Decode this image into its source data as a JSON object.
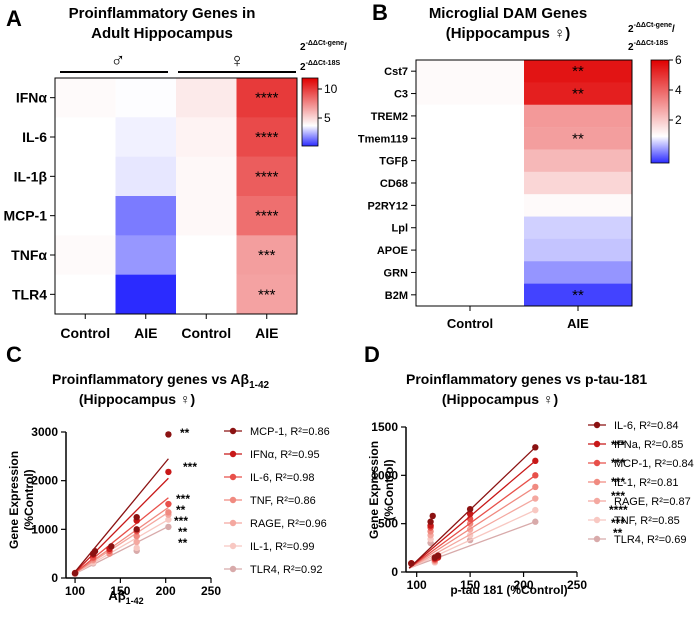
{
  "panels": {
    "A": {
      "letter": "A",
      "title_line1": "Proinflammatory Genes in",
      "title_line2": "Adult Hippocampus",
      "male_symbol": "♂",
      "female_symbol": "♀",
      "columns": [
        "Control",
        "AIE",
        "Control",
        "AIE"
      ],
      "colorbar_label_main": "2",
      "colorbar_label_sup1": "-ΔΔCt-gene",
      "colorbar_label_slash": "/",
      "colorbar_label_sup2": "-ΔΔCt-18S",
      "colorbar_ticks": [
        "10",
        "5"
      ]
    },
    "B": {
      "letter": "B",
      "title_line1": "Microglial DAM Genes",
      "title_line2": "(Hippocampus ♀)",
      "columns": [
        "Control",
        "AIE"
      ],
      "colorbar_label_main": "2",
      "colorbar_label_sup1": "-ΔΔCt-gene",
      "colorbar_label_slash": "/",
      "colorbar_label_sup2": "-ΔΔCt-18S",
      "colorbar_ticks": [
        "6",
        "4",
        "2"
      ]
    },
    "C": {
      "letter": "C",
      "title_line1": "Proinflammatory genes vs Aβ",
      "title_sub": "1-42",
      "title_line2": "(Hippocampus ♀)",
      "ylabel_line1": "Gene Expression",
      "ylabel_line2": "(%Control)",
      "xlabel": "Aβ",
      "xlabel_sub": "1-42"
    },
    "D": {
      "letter": "D",
      "title_line1": "Proinflammatory genes vs p-tau-181",
      "title_line2": "(Hippocampus ♀)",
      "ylabel_line1": "Gene Expression",
      "ylabel_line2": "(%Control)",
      "xlabel": "p-tau 181 (%Control)"
    }
  },
  "chart_data": [
    {
      "panel": "A",
      "type": "heatmap",
      "title": "Proinflammatory Genes in Adult Hippocampus",
      "rows": [
        "IFNα",
        "IL-6",
        "IL-1β",
        "MCP-1",
        "TNFα",
        "TLR4"
      ],
      "columns": [
        "Control ♂",
        "AIE ♂",
        "Control ♀",
        "AIE ♀"
      ],
      "values": [
        [
          1.2,
          0.95,
          1.9,
          9.5
        ],
        [
          1.0,
          0.7,
          1.5,
          8.8
        ],
        [
          1.0,
          0.5,
          1.3,
          8.0
        ],
        [
          1.0,
          -1.8,
          1.3,
          7.2
        ],
        [
          1.2,
          -1.2,
          1.0,
          5.2
        ],
        [
          1.0,
          -3.5,
          1.0,
          5.0
        ]
      ],
      "significance": [
        [
          "",
          "",
          "",
          "****"
        ],
        [
          "",
          "",
          "",
          "****"
        ],
        [
          "",
          "",
          "",
          "****"
        ],
        [
          "",
          "",
          "",
          "****"
        ],
        [
          "",
          "",
          "",
          "***"
        ],
        [
          "",
          "",
          "",
          "***"
        ]
      ],
      "colorbar": {
        "min": -3.5,
        "mid": 1,
        "max": 12,
        "ticks": [
          10,
          5
        ]
      }
    },
    {
      "panel": "B",
      "type": "heatmap",
      "title": "Microglial DAM Genes (Hippocampus ♀)",
      "rows": [
        "Cst7",
        "C3",
        "TREM2",
        "Tmem119",
        "TGFβ",
        "CD68",
        "P2RY12",
        "Lpl",
        "APOE",
        "GRN",
        "B2M"
      ],
      "columns": [
        "Control",
        "AIE"
      ],
      "values": [
        [
          1.1,
          5.6
        ],
        [
          1.1,
          5.4
        ],
        [
          1.0,
          3.0
        ],
        [
          1.0,
          2.9
        ],
        [
          1.0,
          2.4
        ],
        [
          1.0,
          1.8
        ],
        [
          1.0,
          1.1
        ],
        [
          1.0,
          0.6
        ],
        [
          1.0,
          0.5
        ],
        [
          1.0,
          0.1
        ],
        [
          1.0,
          -0.6
        ]
      ],
      "significance": [
        [
          "",
          "**"
        ],
        [
          "",
          "**"
        ],
        [
          "",
          ""
        ],
        [
          "",
          "**"
        ],
        [
          "",
          ""
        ],
        [
          "",
          ""
        ],
        [
          "",
          ""
        ],
        [
          "",
          ""
        ],
        [
          "",
          ""
        ],
        [
          "",
          ""
        ],
        [
          "",
          "**"
        ]
      ],
      "colorbar": {
        "min": -0.8,
        "mid": 1,
        "max": 6,
        "ticks": [
          6,
          4,
          2
        ]
      }
    },
    {
      "panel": "C",
      "type": "scatter",
      "title": "Proinflammatory genes vs Aβ1-42 (Hippocampus ♀)",
      "xlabel": "Aβ1-42",
      "ylabel": "Gene Expression (%Control)",
      "xlim": [
        90,
        250
      ],
      "ylim": [
        0,
        3000
      ],
      "xticks": [
        100,
        150,
        200,
        250
      ],
      "yticks": [
        0,
        1000,
        2000,
        3000
      ],
      "series": [
        {
          "name": "MCP-1, R²=0.86",
          "color": "#8b1212",
          "sig": "**",
          "line": [
            [
              97,
              60
            ],
            [
              203,
              2450
            ]
          ],
          "points": [
            [
              100,
              100
            ],
            [
              120,
              500
            ],
            [
              122,
              550
            ],
            [
              140,
              650
            ],
            [
              168,
              1000
            ],
            [
              168,
              1250
            ],
            [
              203,
              2950
            ]
          ]
        },
        {
          "name": "IFNα, R²=0.95",
          "color": "#c81818",
          "sig": "***",
          "line": [
            [
              97,
              60
            ],
            [
              203,
              2050
            ]
          ],
          "points": [
            [
              100,
              100
            ],
            [
              120,
              480
            ],
            [
              138,
              600
            ],
            [
              168,
              1180
            ],
            [
              203,
              2180
            ]
          ]
        },
        {
          "name": "IL-6, R²=0.98",
          "color": "#e8504a",
          "sig": "***",
          "line": [
            [
              97,
              60
            ],
            [
              203,
              1650
            ]
          ],
          "points": [
            [
              100,
              100
            ],
            [
              120,
              420
            ],
            [
              138,
              560
            ],
            [
              168,
              960
            ],
            [
              203,
              1520
            ]
          ]
        },
        {
          "name": "TNF, R²=0.86",
          "color": "#f08a80",
          "sig": "**",
          "line": [
            [
              97,
              60
            ],
            [
              203,
              1450
            ]
          ],
          "points": [
            [
              100,
              100
            ],
            [
              120,
              380
            ],
            [
              138,
              500
            ],
            [
              168,
              860
            ],
            [
              203,
              1350
            ]
          ]
        },
        {
          "name": "RAGE, R²=0.96",
          "color": "#f4a8a0",
          "sig": "***",
          "line": [
            [
              97,
              60
            ],
            [
              203,
              1350
            ]
          ],
          "points": [
            [
              100,
              100
            ],
            [
              120,
              360
            ],
            [
              168,
              740
            ],
            [
              203,
              1300
            ]
          ]
        },
        {
          "name": "IL-1, R²=0.99",
          "color": "#f8c8c2",
          "sig": "**",
          "line": [
            [
              97,
              60
            ],
            [
              203,
              1200
            ]
          ],
          "points": [
            [
              100,
              90
            ],
            [
              120,
              320
            ],
            [
              168,
              620
            ],
            [
              203,
              1200
            ]
          ]
        },
        {
          "name": "TLR4, R²=0.92",
          "color": "#d8aaaa",
          "sig": "**",
          "line": [
            [
              97,
              60
            ],
            [
              203,
              1060
            ]
          ],
          "points": [
            [
              100,
              80
            ],
            [
              120,
              300
            ],
            [
              168,
              560
            ],
            [
              203,
              1050
            ]
          ]
        }
      ]
    },
    {
      "panel": "D",
      "type": "scatter",
      "title": "Proinflammatory genes vs p-tau-181 (Hippocampus ♀)",
      "xlabel": "p-tau 181 (%Control)",
      "ylabel": "Gene Expression (%Control)",
      "xlim": [
        90,
        250
      ],
      "ylim": [
        0,
        1500
      ],
      "xticks": [
        100,
        150,
        200,
        250
      ],
      "yticks": [
        0,
        500,
        1000,
        1500
      ],
      "series": [
        {
          "name": "IL-6, R²=0.84",
          "color": "#8b1212",
          "sig": "***",
          "line": [
            [
              93,
              40
            ],
            [
              211,
              1290
            ]
          ],
          "points": [
            [
              95,
              90
            ],
            [
              113,
              520
            ],
            [
              115,
              580
            ],
            [
              117,
              150
            ],
            [
              120,
              170
            ],
            [
              150,
              650
            ],
            [
              211,
              1290
            ]
          ]
        },
        {
          "name": "IFNa, R²=0.85",
          "color": "#c81818",
          "sig": "***",
          "line": [
            [
              93,
              40
            ],
            [
              211,
              1150
            ]
          ],
          "points": [
            [
              95,
              90
            ],
            [
              113,
              480
            ],
            [
              117,
              140
            ],
            [
              120,
              150
            ],
            [
              150,
              600
            ],
            [
              211,
              1150
            ]
          ]
        },
        {
          "name": "MCP-1, R²=0.84",
          "color": "#e8504a",
          "sig": "***",
          "line": [
            [
              93,
              40
            ],
            [
              211,
              1000
            ]
          ],
          "points": [
            [
              95,
              90
            ],
            [
              113,
              460
            ],
            [
              117,
              130
            ],
            [
              150,
              550
            ],
            [
              211,
              1000
            ]
          ]
        },
        {
          "name": "IL-1, R²=0.81",
          "color": "#f08a80",
          "sig": "***",
          "line": [
            [
              93,
              40
            ],
            [
              211,
              880
            ]
          ],
          "points": [
            [
              95,
              90
            ],
            [
              113,
              420
            ],
            [
              117,
              120
            ],
            [
              150,
              500
            ],
            [
              211,
              880
            ]
          ]
        },
        {
          "name": "RAGE, R²=0.87",
          "color": "#f4a8a0",
          "sig": "****",
          "line": [
            [
              93,
              40
            ],
            [
              211,
              760
            ]
          ],
          "points": [
            [
              95,
              90
            ],
            [
              113,
              380
            ],
            [
              117,
              110
            ],
            [
              150,
              440
            ],
            [
              211,
              760
            ]
          ]
        },
        {
          "name": "TNF, R²=0.85",
          "color": "#f8c8c2",
          "sig": "***",
          "line": [
            [
              93,
              40
            ],
            [
              211,
              640
            ]
          ],
          "points": [
            [
              95,
              80
            ],
            [
              113,
              340
            ],
            [
              117,
              100
            ],
            [
              150,
              380
            ],
            [
              211,
              640
            ]
          ]
        },
        {
          "name": "TLR4, R²=0.69",
          "color": "#d8aaaa",
          "sig": "**",
          "line": [
            [
              93,
              40
            ],
            [
              211,
              520
            ]
          ],
          "points": [
            [
              95,
              80
            ],
            [
              113,
              300
            ],
            [
              117,
              100
            ],
            [
              150,
              330
            ],
            [
              211,
              520
            ]
          ]
        }
      ]
    }
  ]
}
